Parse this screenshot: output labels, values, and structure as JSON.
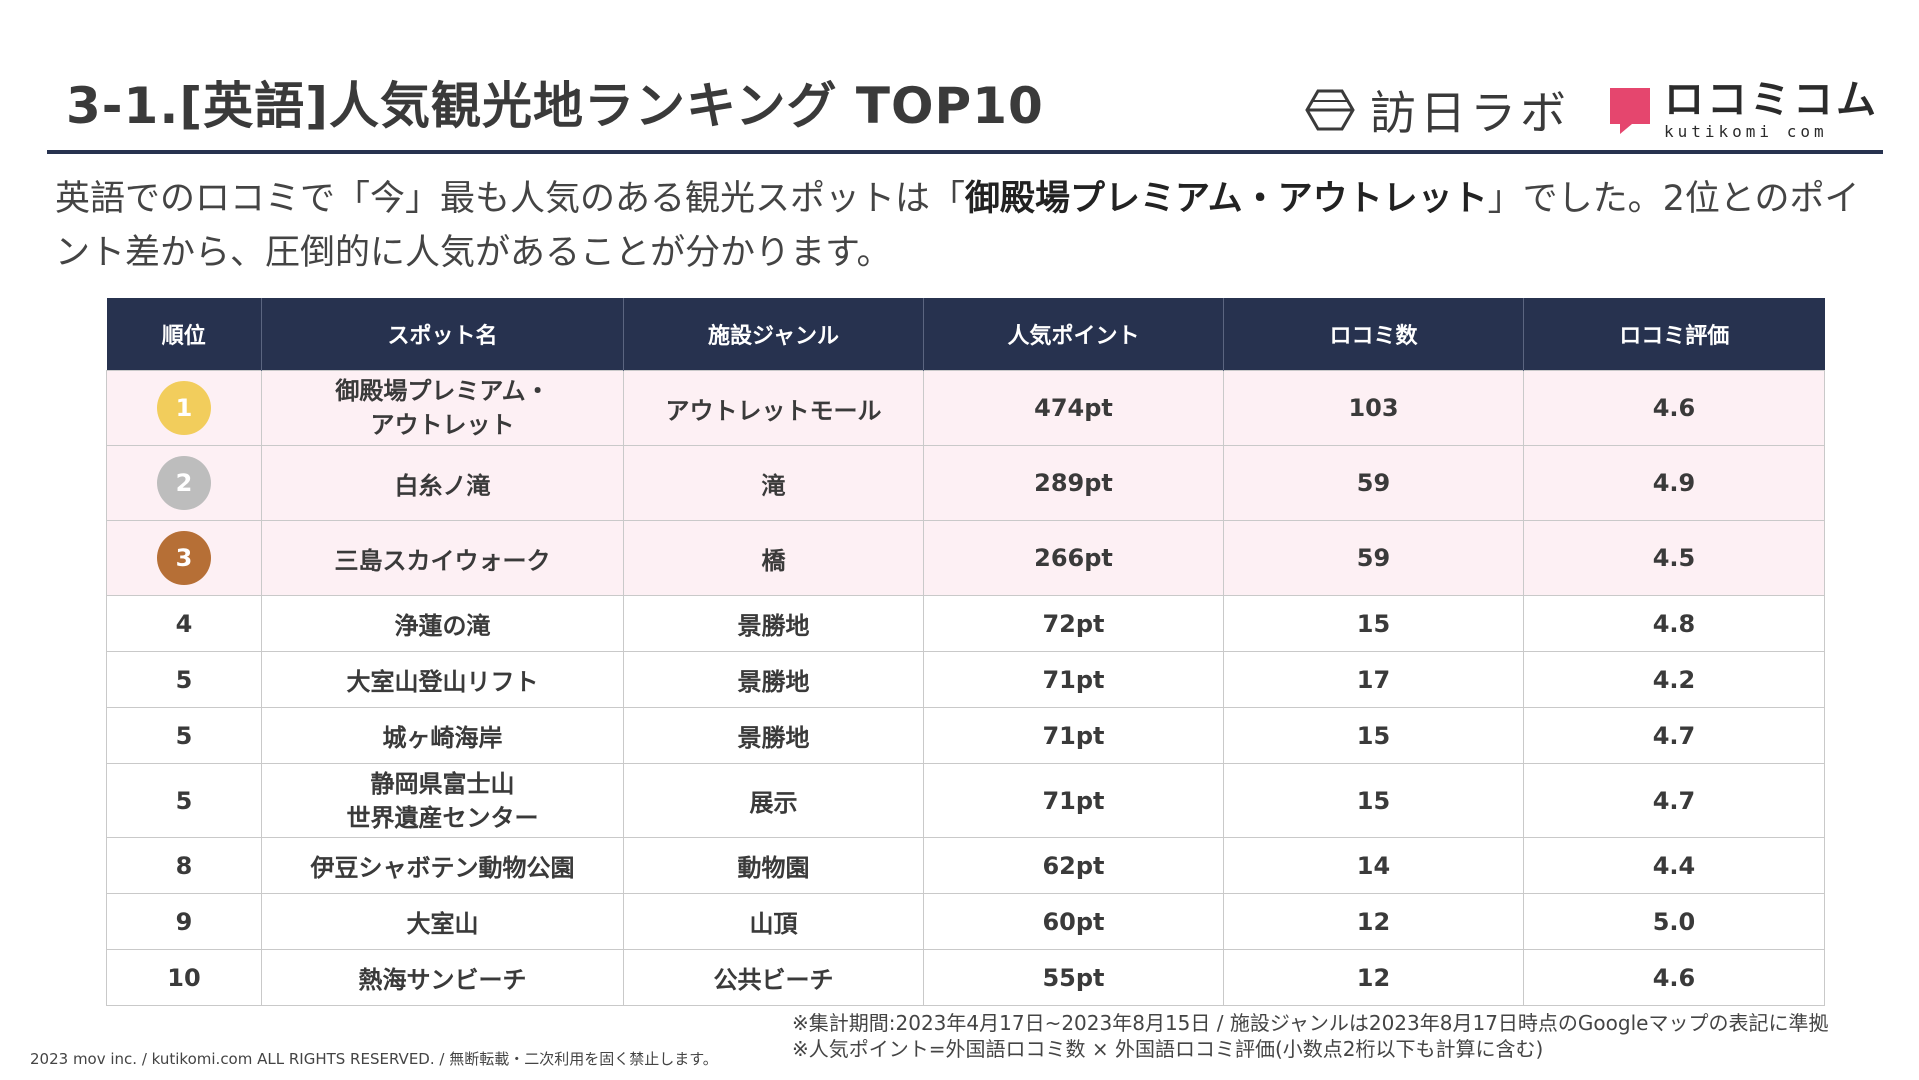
{
  "header": {
    "title": "3-1.[英語]人気観光地ランキング TOP10",
    "logo_homi": "訪日ラボ",
    "logo_kutikomi": "ロコミコム",
    "logo_kutikomi_sub": "kutikomi com"
  },
  "intro": {
    "text_1": "英語でのロコミで「今」最も人気のある観光スポットは「",
    "text_bold": "御殿場プレミアム・アウトレット",
    "text_2": "」でした。2位とのポイント差から、圧倒的に人気があることが分かります。"
  },
  "table": {
    "headers": [
      "順位",
      "スポット名",
      "施設ジャンル",
      "人気ポイント",
      "ロコミ数",
      "ロコミ評価"
    ],
    "rows": [
      {
        "rank": "1",
        "name": [
          "御殿場プレミアム・",
          "アウトレット"
        ],
        "genre": "アウトレットモール",
        "points": "474pt",
        "count": "103",
        "rating": "4.6"
      },
      {
        "rank": "2",
        "name": [
          "白糸ノ滝"
        ],
        "genre": "滝",
        "points": "289pt",
        "count": "59",
        "rating": "4.9"
      },
      {
        "rank": "3",
        "name": [
          "三島スカイウォーク"
        ],
        "genre": "橋",
        "points": "266pt",
        "count": "59",
        "rating": "4.5"
      },
      {
        "rank": "4",
        "name": [
          "浄蓮の滝"
        ],
        "genre": "景勝地",
        "points": "72pt",
        "count": "15",
        "rating": "4.8"
      },
      {
        "rank": "5",
        "name": [
          "大室山登山リフト"
        ],
        "genre": "景勝地",
        "points": "71pt",
        "count": "17",
        "rating": "4.2"
      },
      {
        "rank": "5",
        "name": [
          "城ヶ崎海岸"
        ],
        "genre": "景勝地",
        "points": "71pt",
        "count": "15",
        "rating": "4.7"
      },
      {
        "rank": "5",
        "name": [
          "静岡県富士山",
          "世界遺産センター"
        ],
        "genre": "展示",
        "points": "71pt",
        "count": "15",
        "rating": "4.7"
      },
      {
        "rank": "8",
        "name": [
          "伊豆シャボテン動物公園"
        ],
        "genre": "動物園",
        "points": "62pt",
        "count": "14",
        "rating": "4.4"
      },
      {
        "rank": "9",
        "name": [
          "大室山"
        ],
        "genre": "山頂",
        "points": "60pt",
        "count": "12",
        "rating": "5.0"
      },
      {
        "rank": "10",
        "name": [
          "熱海サンビーチ"
        ],
        "genre": "公共ビーチ",
        "points": "55pt",
        "count": "12",
        "rating": "4.6"
      }
    ]
  },
  "notes": [
    "※集計期間:2023年4月17日~2023年8月15日 / 施設ジャンルは2023年8月17日時点のGoogleマップの表記に準拠",
    "※人気ポイント=外国語ロコミ数 × 外国語ロコミ評価(小数点2桁以下も計算に含む)"
  ],
  "copyright": "2023 mov inc. / kutikomi.com ALL RIGHTS RESERVED. / 無断転載・二次利用を固く禁止します。",
  "colors": {
    "header_bg": "#27324f",
    "top3_row_bg": "#fdf0f4",
    "gold": "#f2cd5c",
    "silver": "#bdbdbd",
    "bronze": "#b66f36",
    "kutikomi_pink": "#e5466e"
  }
}
